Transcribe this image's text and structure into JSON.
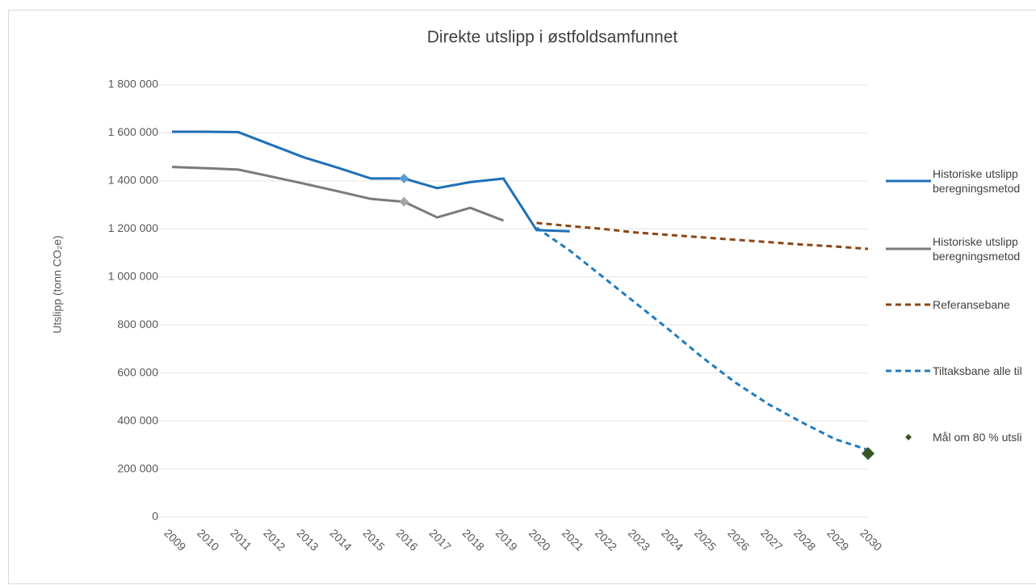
{
  "chart_data": {
    "type": "line",
    "title": "Direkte utslipp i østfoldsamfunnet",
    "y_label": "Utslipp (tonn CO₂e)",
    "categories": [
      "2009",
      "2010",
      "2011",
      "2012",
      "2013",
      "2014",
      "2015",
      "2016",
      "2017",
      "2018",
      "2019",
      "2020",
      "2021",
      "2022",
      "2023",
      "2024",
      "2025",
      "2026",
      "2027",
      "2028",
      "2029",
      "2030"
    ],
    "ylim": [
      0,
      1800000
    ],
    "yticks": [
      0,
      {
        "value": 200000,
        "label": "200 000"
      },
      {
        "value": 400000,
        "label": "400 000"
      },
      {
        "value": 600000,
        "label": "600 000"
      },
      {
        "value": 800000,
        "label": "800 000"
      },
      {
        "value": 1000000,
        "label": "1 000 000"
      },
      {
        "value": 1200000,
        "label": "1 200 000"
      },
      {
        "value": 1400000,
        "label": "1 400 000"
      },
      {
        "value": 1600000,
        "label": "1 600 000"
      },
      {
        "value": 1800000,
        "label": "1 800 000"
      }
    ],
    "grid": true,
    "legend": "right",
    "series": [
      {
        "name": "Historiske utslipp beregningsmetod",
        "color": "#1f6fb8",
        "style": "solid",
        "marker_at": "2016",
        "values": [
          1605000,
          1605000,
          1603000,
          1550000,
          1497000,
          1455000,
          1410000,
          1410000,
          1370000,
          1395000,
          1410000,
          1195000,
          1190000,
          null,
          null,
          null,
          null,
          null,
          null,
          null,
          null,
          null
        ]
      },
      {
        "name": "Historiske utslipp beregningsmetod",
        "color": "#7a7a7a",
        "style": "solid",
        "marker_at": "2016",
        "values": [
          1458000,
          1453000,
          1447000,
          1418000,
          1388000,
          1357000,
          1325000,
          1313000,
          1248000,
          1288000,
          1235000,
          null,
          null,
          null,
          null,
          null,
          null,
          null,
          null,
          null,
          null,
          null
        ]
      },
      {
        "name": "Referansebane",
        "color": "#8b4513",
        "style": "dashed",
        "values": [
          null,
          null,
          null,
          null,
          null,
          null,
          null,
          null,
          null,
          null,
          null,
          1225000,
          1212000,
          1200000,
          1185000,
          1175000,
          1165000,
          1155000,
          1145000,
          1135000,
          1127000,
          1117000
        ]
      },
      {
        "name": "Tiltaksbane alle til",
        "color": "#1f7bc0",
        "style": "dashed",
        "values": [
          null,
          null,
          null,
          null,
          null,
          null,
          null,
          null,
          null,
          null,
          null,
          1205000,
          1110000,
          1000000,
          890000,
          780000,
          665000,
          560000,
          470000,
          395000,
          325000,
          280000
        ]
      },
      {
        "name": "Mål om 80 % utsli",
        "color": "#375623",
        "style": "marker",
        "values": [
          null,
          null,
          null,
          null,
          null,
          null,
          null,
          null,
          null,
          null,
          null,
          null,
          null,
          null,
          null,
          null,
          null,
          null,
          null,
          null,
          null,
          265000
        ]
      }
    ]
  }
}
